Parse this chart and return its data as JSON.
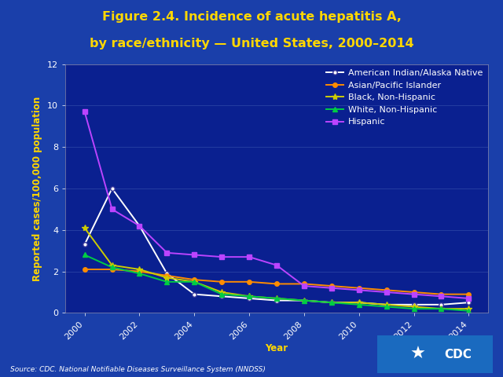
{
  "title_line1": "Figure 2.4. Incidence of acute hepatitis A,",
  "title_line2": "by race/ethnicity — United States, 2000–2014",
  "xlabel": "Year",
  "ylabel": "Reported cases/100,000 population",
  "source": "Source: CDC. National Notifiable Diseases Surveillance System (NNDSS)",
  "years": [
    2000,
    2001,
    2002,
    2003,
    2004,
    2005,
    2006,
    2007,
    2008,
    2009,
    2010,
    2011,
    2012,
    2013,
    2014
  ],
  "series_order": [
    "American Indian/Alaska Native",
    "Asian/Pacific Islander",
    "Black, Non-Hispanic",
    "White, Non-Hispanic",
    "Hispanic"
  ],
  "series": {
    "American Indian/Alaska Native": {
      "color": "#FFFFFF",
      "marker": "o",
      "marker_facecolor": "#FFFFFF",
      "marker_edgecolor": "#333399",
      "values": [
        3.3,
        6.0,
        4.2,
        1.9,
        0.9,
        0.8,
        0.7,
        0.6,
        0.6,
        0.5,
        0.5,
        0.4,
        0.4,
        0.4,
        0.5
      ]
    },
    "Asian/Pacific Islander": {
      "color": "#FF8C00",
      "marker": "o",
      "marker_facecolor": "#FF8C00",
      "marker_edgecolor": "#FF8C00",
      "values": [
        2.1,
        2.1,
        2.0,
        1.8,
        1.6,
        1.5,
        1.5,
        1.4,
        1.4,
        1.3,
        1.2,
        1.1,
        1.0,
        0.9,
        0.9
      ]
    },
    "Black, Non-Hispanic": {
      "color": "#CCCC00",
      "marker": "*",
      "marker_facecolor": "#CCCC00",
      "marker_edgecolor": "#CCCC00",
      "values": [
        4.1,
        2.3,
        2.1,
        1.7,
        1.5,
        1.0,
        0.8,
        0.7,
        0.6,
        0.5,
        0.5,
        0.4,
        0.3,
        0.2,
        0.2
      ]
    },
    "White, Non-Hispanic": {
      "color": "#00CC44",
      "marker": "^",
      "marker_facecolor": "#00CC44",
      "marker_edgecolor": "#00CC44",
      "values": [
        2.8,
        2.2,
        1.9,
        1.5,
        1.5,
        0.9,
        0.8,
        0.7,
        0.6,
        0.5,
        0.4,
        0.3,
        0.2,
        0.2,
        0.1
      ]
    },
    "Hispanic": {
      "color": "#BB44FF",
      "marker": "s",
      "marker_facecolor": "#BB44FF",
      "marker_edgecolor": "#BB44FF",
      "values": [
        9.7,
        5.0,
        4.2,
        2.9,
        2.8,
        2.7,
        2.7,
        2.3,
        1.3,
        1.2,
        1.1,
        1.0,
        0.9,
        0.8,
        0.7
      ]
    }
  },
  "ylim": [
    0,
    12
  ],
  "yticks": [
    0,
    2,
    4,
    6,
    8,
    10,
    12
  ],
  "xticks": [
    2000,
    2002,
    2004,
    2006,
    2008,
    2010,
    2012,
    2014
  ],
  "bg_outer": "#1a3faa",
  "bg_plot": "#0a2090",
  "title_color": "#FFD700",
  "axis_label_color": "#FFD700",
  "tick_color": "#FFFFFF",
  "legend_text_color": "#FFFFFF",
  "source_color": "#FFFFFF",
  "title_fontsize": 11.5,
  "axis_label_fontsize": 8.5,
  "tick_fontsize": 8,
  "legend_fontsize": 8,
  "source_fontsize": 6.5
}
